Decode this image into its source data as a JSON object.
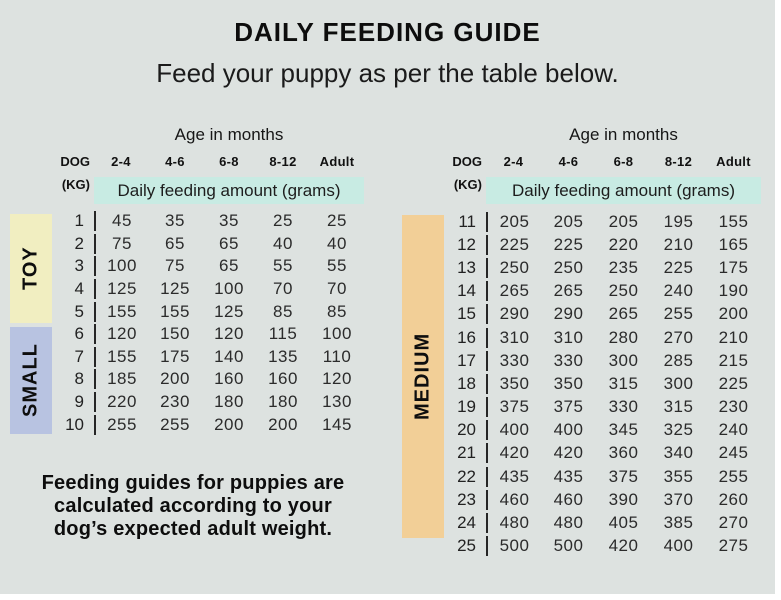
{
  "footer_note": "Feeding guides for puppies are\ncalculated according to your\ndog’s expected adult weight.",
  "colors": {
    "background": "#dde2e0",
    "highlight_band": "#c8ebe3",
    "toy_block": "#f1eec1",
    "small_block": "#b8c3e1",
    "medium_block": "#f2cf97",
    "divider_line": "#262626",
    "text": "#111111"
  },
  "chart_data": {
    "type": "table",
    "title": "DAILY FEEDING GUIDE",
    "subtitle": "Feed your puppy as per the table below.",
    "axis_label": "Age in months",
    "dog_label": "DOG",
    "kg_label": "(KG)",
    "columns": [
      "2-4",
      "4-6",
      "6-8",
      "8-12",
      "Adult"
    ],
    "value_units": "Daily feeding amount (grams)",
    "tables": [
      {
        "side": "left",
        "groups": [
          {
            "name": "TOY",
            "kg_range": [
              1,
              5
            ]
          },
          {
            "name": "SMALL",
            "kg_range": [
              6,
              10
            ]
          }
        ],
        "rows": [
          [
            "1",
            "45",
            "35",
            "35",
            "25",
            "25"
          ],
          [
            "2",
            "75",
            "65",
            "65",
            "40",
            "40"
          ],
          [
            "3",
            "100",
            "75",
            "65",
            "55",
            "55"
          ],
          [
            "4",
            "125",
            "125",
            "100",
            "70",
            "70"
          ],
          [
            "5",
            "155",
            "155",
            "125",
            "85",
            "85"
          ],
          [
            "6",
            "120",
            "150",
            "120",
            "115",
            "100"
          ],
          [
            "7",
            "155",
            "175",
            "140",
            "135",
            "110"
          ],
          [
            "8",
            "185",
            "200",
            "160",
            "160",
            "120"
          ],
          [
            "9",
            "220",
            "230",
            "180",
            "180",
            "130"
          ],
          [
            "10",
            "255",
            "255",
            "200",
            "200",
            "145"
          ]
        ]
      },
      {
        "side": "right",
        "groups": [
          {
            "name": "MEDIUM",
            "kg_range": [
              11,
              25
            ]
          }
        ],
        "rows": [
          [
            "11",
            "205",
            "205",
            "205",
            "195",
            "155"
          ],
          [
            "12",
            "225",
            "225",
            "220",
            "210",
            "165"
          ],
          [
            "13",
            "250",
            "250",
            "235",
            "225",
            "175"
          ],
          [
            "14",
            "265",
            "265",
            "250",
            "240",
            "190"
          ],
          [
            "15",
            "290",
            "290",
            "265",
            "255",
            "200"
          ],
          [
            "16",
            "310",
            "310",
            "280",
            "270",
            "210"
          ],
          [
            "17",
            "330",
            "330",
            "300",
            "285",
            "215"
          ],
          [
            "18",
            "350",
            "350",
            "315",
            "300",
            "225"
          ],
          [
            "19",
            "375",
            "375",
            "330",
            "315",
            "230"
          ],
          [
            "20",
            "400",
            "400",
            "345",
            "325",
            "240"
          ],
          [
            "21",
            "420",
            "420",
            "360",
            "340",
            "245"
          ],
          [
            "22",
            "435",
            "435",
            "375",
            "355",
            "255"
          ],
          [
            "23",
            "460",
            "460",
            "390",
            "370",
            "260"
          ],
          [
            "24",
            "480",
            "480",
            "405",
            "385",
            "270"
          ],
          [
            "25",
            "500",
            "500",
            "420",
            "400",
            "275"
          ]
        ]
      }
    ]
  }
}
